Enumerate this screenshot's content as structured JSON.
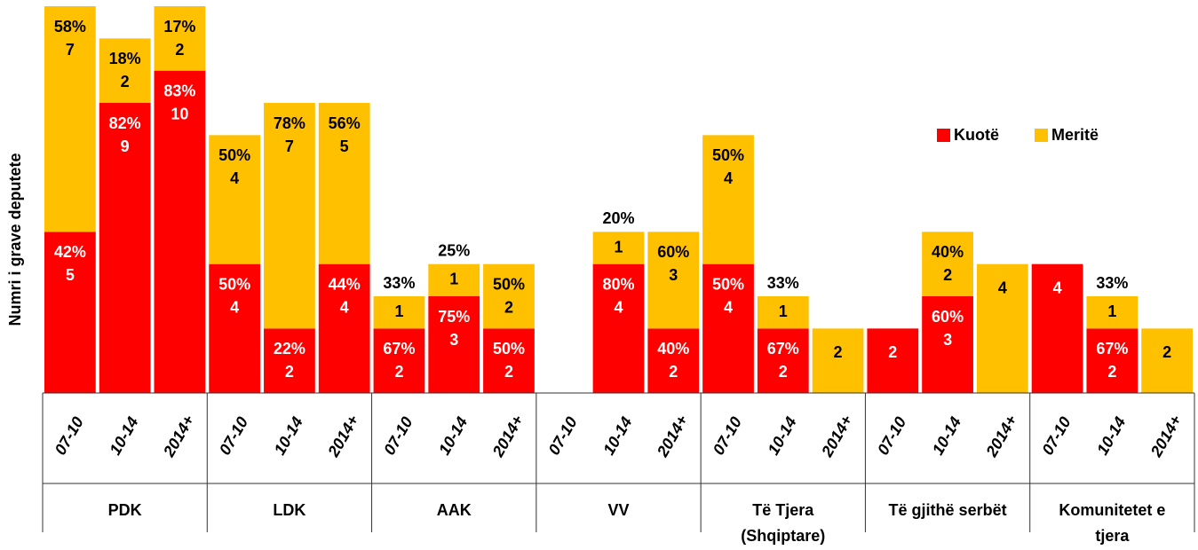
{
  "chart_data": {
    "type": "bar",
    "stacked": true,
    "y_label": "Numri i grave deputete",
    "categories": [
      "07-10",
      "10-14",
      "2014+",
      "07-10",
      "10-14",
      "2014+",
      "07-10",
      "10-14",
      "2014+",
      "07-10",
      "10-14",
      "2014+",
      "07-10",
      "10-14",
      "2014+",
      "07-10",
      "10-14",
      "2014+",
      "07-10",
      "10-14",
      "2014+"
    ],
    "groups": [
      [
        "PDK"
      ],
      [
        "LDK"
      ],
      [
        "AAK"
      ],
      [
        "VV"
      ],
      [
        "Të Tjera",
        "(Shqiptare)"
      ],
      [
        "Të gjithë serbët"
      ],
      [
        "Komunitetet e",
        "tjera"
      ]
    ],
    "series": [
      {
        "name": "Kuotë",
        "color": "#ff0000",
        "text_color": "#ffffff",
        "values": [
          5,
          9,
          10,
          4,
          2,
          4,
          2,
          3,
          2,
          null,
          4,
          2,
          4,
          2,
          null,
          2,
          3,
          null,
          4,
          2,
          null
        ],
        "shares": [
          "42%",
          "82%",
          "83%",
          "50%",
          "22%",
          "44%",
          "67%",
          "75%",
          "50%",
          null,
          "80%",
          "40%",
          "50%",
          "67%",
          null,
          null,
          "60%",
          null,
          null,
          "67%",
          null
        ]
      },
      {
        "name": "Meritë",
        "color": "#ffc000",
        "text_color": "#000000",
        "values": [
          7,
          2,
          2,
          4,
          7,
          5,
          1,
          1,
          2,
          null,
          1,
          3,
          4,
          1,
          2,
          null,
          2,
          4,
          null,
          1,
          2
        ],
        "shares": [
          "58%",
          "18%",
          "17%",
          "50%",
          "78%",
          "56%",
          "33%",
          "25%",
          "50%",
          null,
          "20%",
          "60%",
          "50%",
          "33%",
          null,
          null,
          "40%",
          null,
          null,
          "33%",
          null
        ]
      }
    ],
    "ylim": [
      0,
      12
    ],
    "legend": "top-right"
  }
}
